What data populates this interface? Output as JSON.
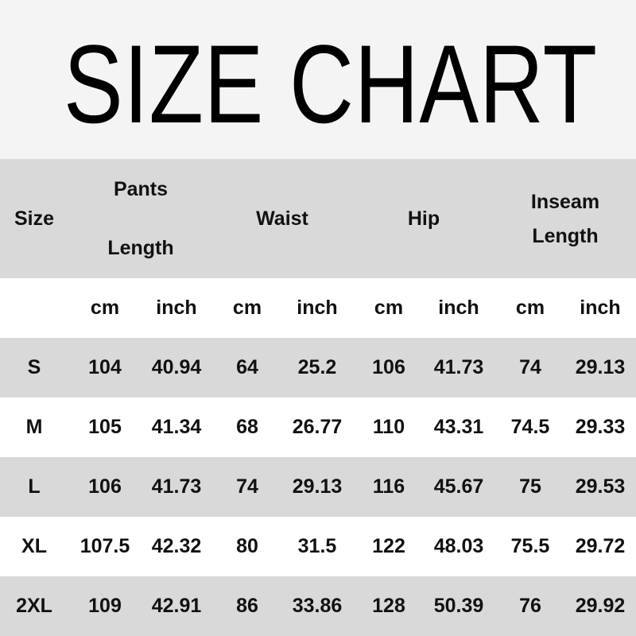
{
  "title": "SIZE CHART",
  "colors": {
    "header_bg": "#d9d9d9",
    "row_alt_bg": "#d9d9d9",
    "title_bg": "#f4f4f4",
    "text": "#111111"
  },
  "header": {
    "size": "Size",
    "pants_length": [
      "Pants",
      "Length"
    ],
    "waist": "Waist",
    "hip": "Hip",
    "inseam_length": [
      "Inseam",
      "Length"
    ]
  },
  "units": [
    "cm",
    "inch",
    "cm",
    "inch",
    "cm",
    "inch",
    "cm",
    "inch"
  ],
  "rows": [
    [
      "S",
      "104",
      "40.94",
      "64",
      "25.2",
      "106",
      "41.73",
      "74",
      "29.13"
    ],
    [
      "M",
      "105",
      "41.34",
      "68",
      "26.77",
      "110",
      "43.31",
      "74.5",
      "29.33"
    ],
    [
      "L",
      "106",
      "41.73",
      "74",
      "29.13",
      "116",
      "45.67",
      "75",
      "29.53"
    ],
    [
      "XL",
      "107.5",
      "42.32",
      "80",
      "31.5",
      "122",
      "48.03",
      "75.5",
      "29.72"
    ],
    [
      "2XL",
      "109",
      "42.91",
      "86",
      "33.86",
      "128",
      "50.39",
      "76",
      "29.92"
    ]
  ]
}
